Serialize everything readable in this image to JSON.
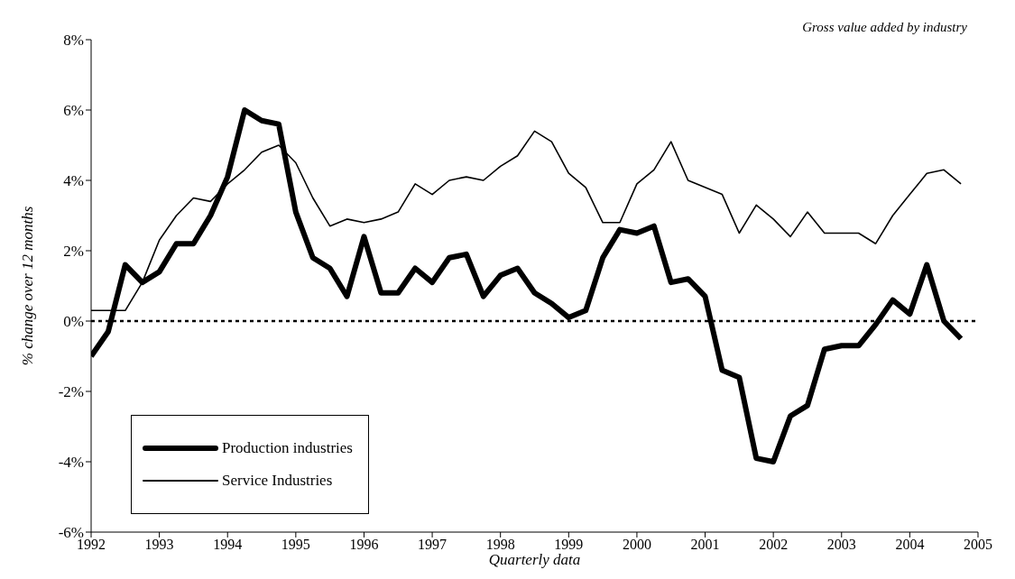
{
  "chart_data": {
    "type": "line",
    "xlabel": "Quarterly data",
    "ylabel": "% change over 12 months",
    "annotations": [
      "Gross value added by industry"
    ],
    "x": [
      1992,
      1992.25,
      1992.5,
      1992.75,
      1993,
      1993.25,
      1993.5,
      1993.75,
      1994,
      1994.25,
      1994.5,
      1994.75,
      1995,
      1995.25,
      1995.5,
      1995.75,
      1996,
      1996.25,
      1996.5,
      1996.75,
      1997,
      1997.25,
      1997.5,
      1997.75,
      1998,
      1998.25,
      1998.5,
      1998.75,
      1999,
      1999.25,
      1999.5,
      1999.75,
      2000,
      2000.25,
      2000.5,
      2000.75,
      2001,
      2001.25,
      2001.5,
      2001.75,
      2002,
      2002.25,
      2002.5,
      2002.75,
      2003,
      2003.25,
      2003.5,
      2003.75,
      2004,
      2004.25,
      2004.5,
      2004.75
    ],
    "series": [
      {
        "name": "Production industries",
        "color": "#000000",
        "values": [
          -1.0,
          -0.3,
          1.6,
          1.1,
          1.4,
          2.2,
          2.2,
          3.0,
          4.1,
          6.0,
          5.7,
          5.6,
          3.1,
          1.8,
          1.5,
          0.7,
          2.4,
          0.8,
          0.8,
          1.5,
          1.1,
          1.8,
          1.9,
          0.7,
          1.3,
          1.5,
          0.8,
          0.5,
          0.1,
          0.3,
          1.8,
          2.6,
          2.5,
          2.7,
          1.1,
          1.2,
          0.7,
          -1.4,
          -1.6,
          -3.9,
          -4.0,
          -2.7,
          -2.4,
          -0.8,
          -0.7,
          -0.7,
          -0.1,
          0.6,
          0.2,
          1.6,
          0.0,
          -0.5
        ]
      },
      {
        "name": "Service Industries",
        "color": "#000000",
        "values": [
          0.3,
          0.3,
          0.3,
          1.1,
          2.3,
          3.0,
          3.5,
          3.4,
          3.9,
          4.3,
          4.8,
          5.0,
          4.5,
          3.5,
          2.7,
          2.9,
          2.8,
          2.9,
          3.1,
          3.9,
          3.6,
          4.0,
          4.1,
          4.0,
          4.4,
          4.7,
          5.4,
          5.1,
          4.2,
          3.8,
          2.8,
          2.8,
          3.9,
          4.3,
          5.1,
          4.0,
          3.8,
          3.6,
          2.5,
          3.3,
          2.9,
          2.4,
          3.1,
          2.5,
          2.5,
          2.5,
          2.2,
          3.0,
          3.6,
          4.2,
          4.3,
          3.9
        ]
      }
    ],
    "xlim": [
      1992,
      2005
    ],
    "xticks": [
      1992,
      1993,
      1994,
      1995,
      1996,
      1997,
      1998,
      1999,
      2000,
      2001,
      2002,
      2003,
      2004,
      2005
    ],
    "ylim": [
      -6,
      8
    ],
    "yticks": [
      {
        "value": -6,
        "label": "-6%"
      },
      {
        "value": -4,
        "label": "-4%"
      },
      {
        "value": -2,
        "label": "-2%"
      },
      {
        "value": 0,
        "label": "0%"
      },
      {
        "value": 2,
        "label": "2%"
      },
      {
        "value": 4,
        "label": "4%"
      },
      {
        "value": 6,
        "label": "6%"
      },
      {
        "value": 8,
        "label": "8%"
      }
    ],
    "ref_lines": [
      {
        "axis": "y",
        "value": 0,
        "line_style": "dotted",
        "color": "#000000"
      }
    ],
    "legend": "bottom left",
    "grid": false,
    "marker": "none",
    "line_style": "solid"
  }
}
